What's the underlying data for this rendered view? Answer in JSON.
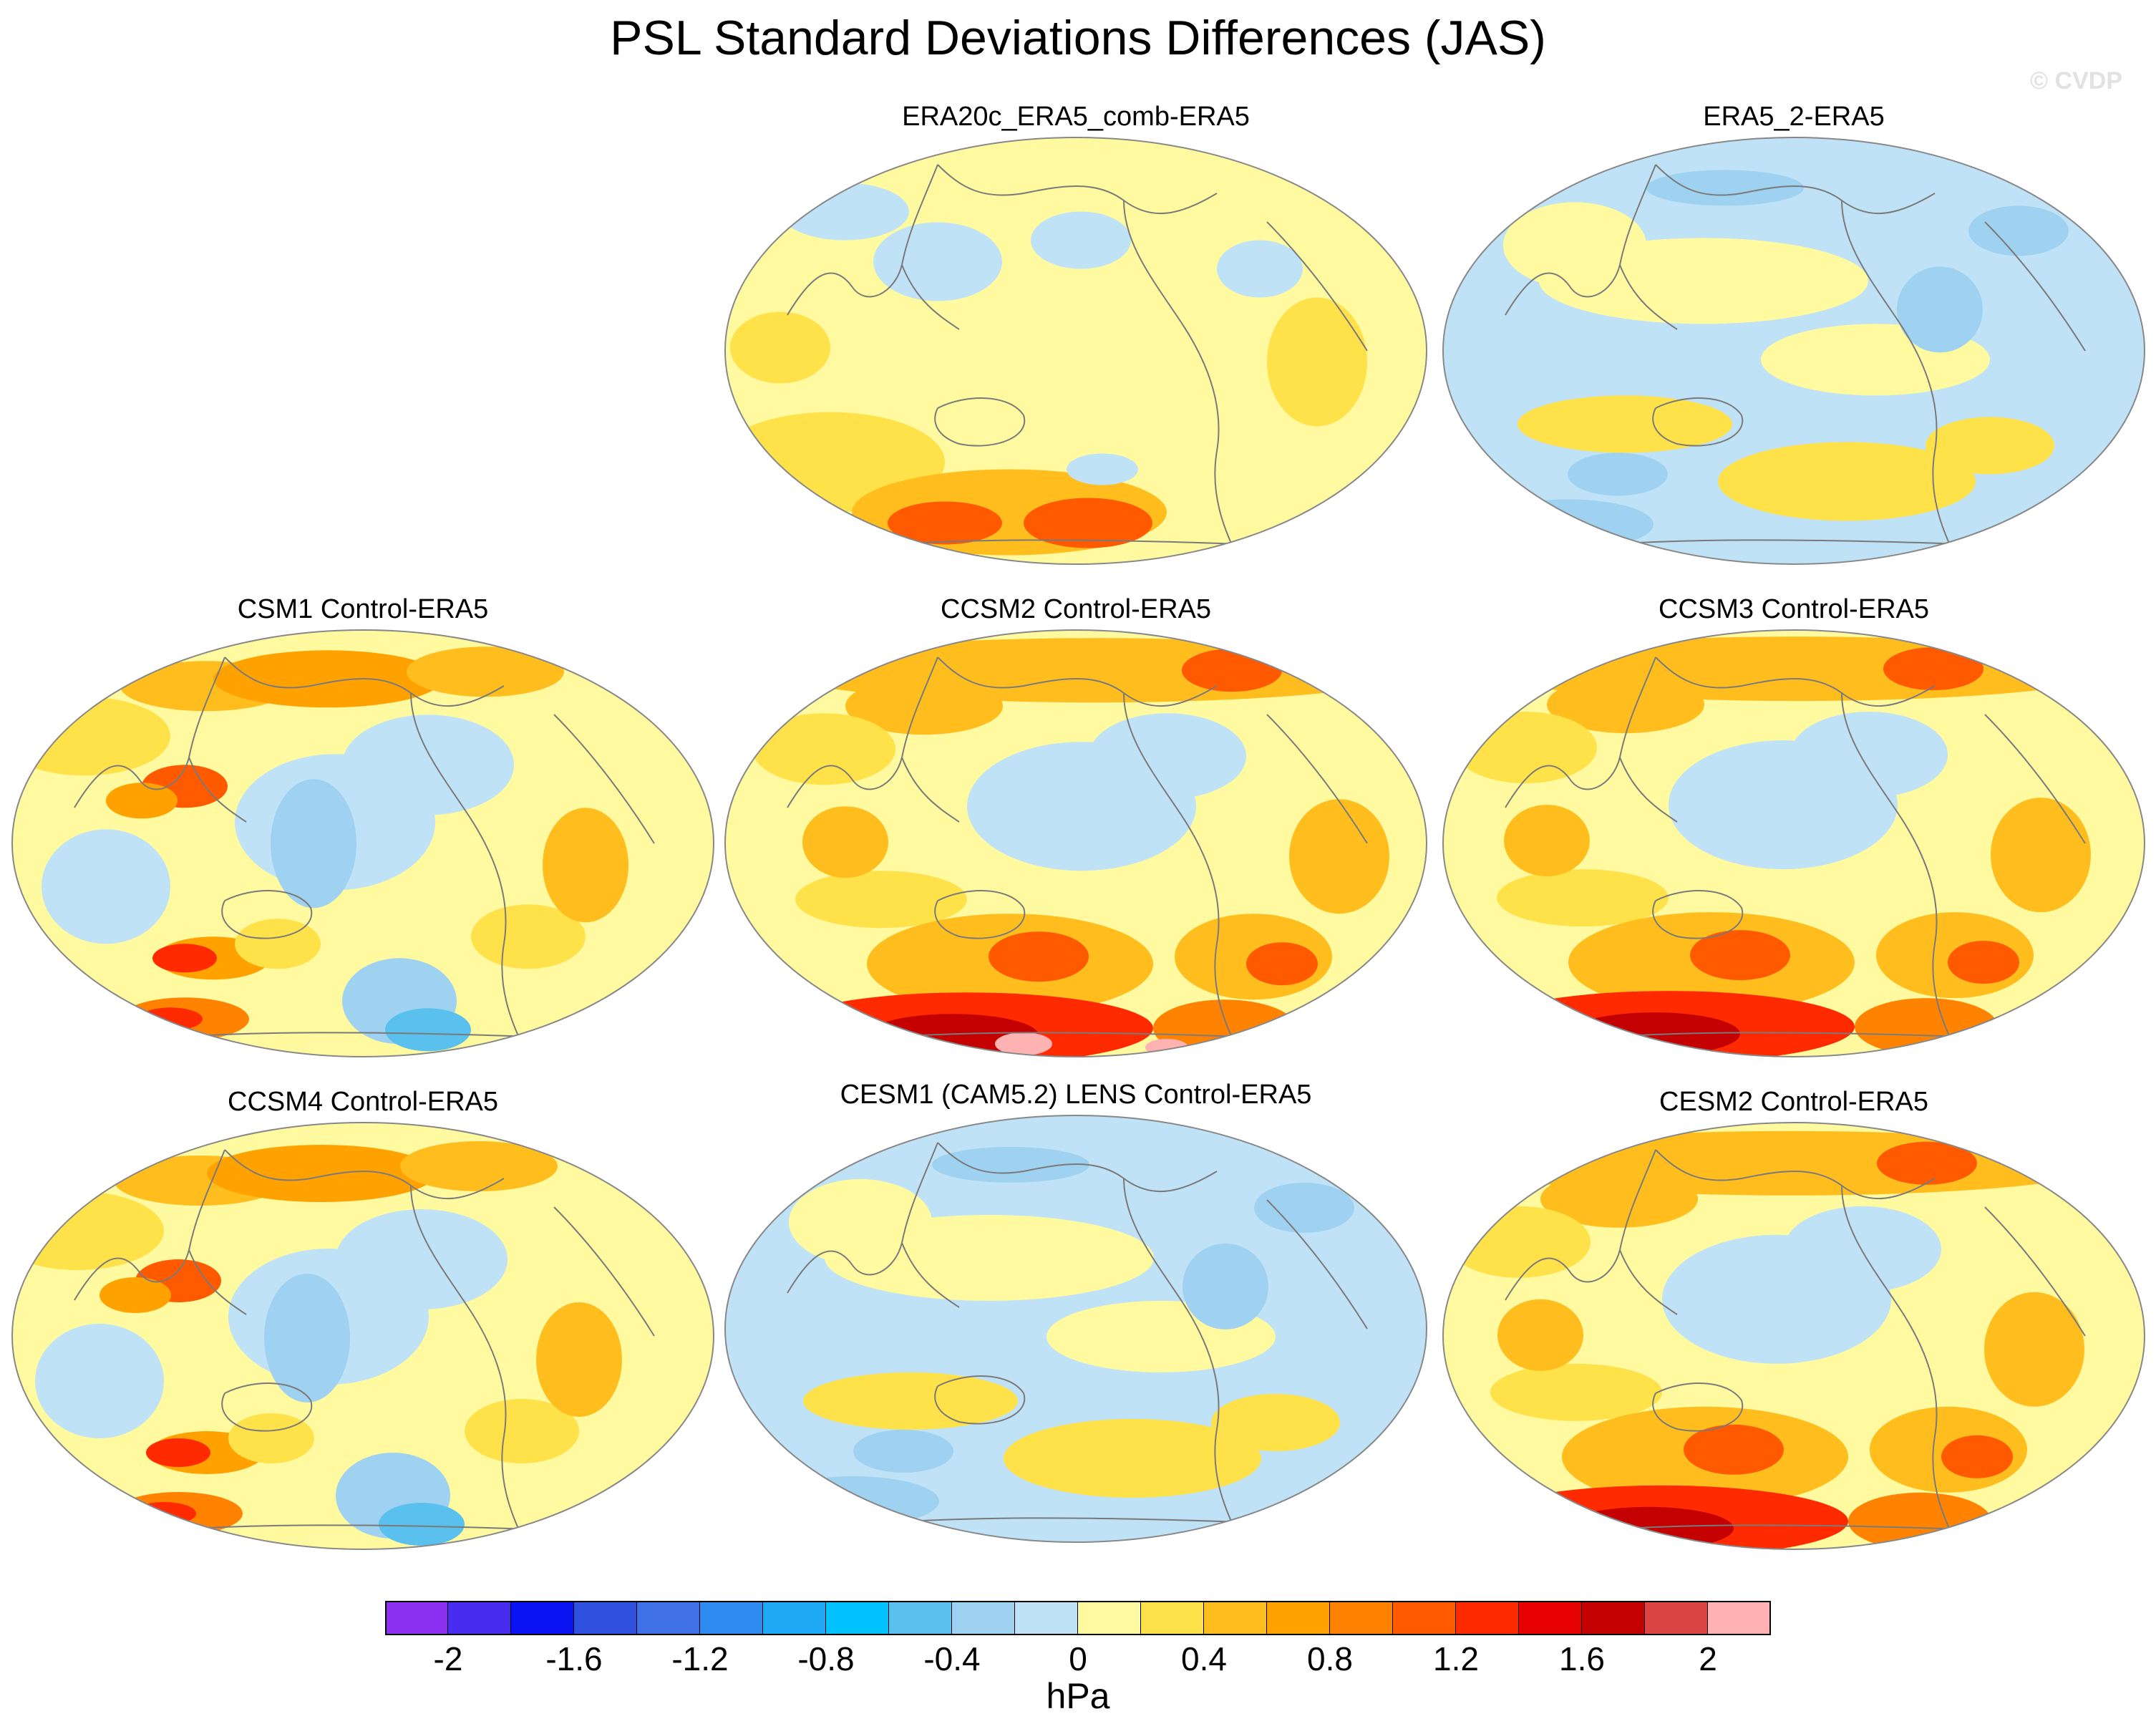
{
  "title": "PSL Standard Deviations Differences (JAS)",
  "credit": "© CVDP",
  "panels": [
    {
      "title": "ERA20c_ERA5_comb-ERA5",
      "theme": "yellow"
    },
    {
      "title": "ERA5_2-ERA5",
      "theme": "blue"
    },
    {
      "title": "CSM1 Control-ERA5",
      "theme": "mixed"
    },
    {
      "title": "CCSM2 Control-ERA5",
      "theme": "warm"
    },
    {
      "title": "CCSM3 Control-ERA5",
      "theme": "warm"
    },
    {
      "title": "CCSM4 Control-ERA5",
      "theme": "mixed"
    },
    {
      "title": "CESM1 (CAM5.2) LENS Control-ERA5",
      "theme": "blue"
    },
    {
      "title": "CESM2 Control-ERA5",
      "theme": "warm"
    }
  ],
  "colorbar": {
    "colors": [
      "#8b2ff0",
      "#4a2cf0",
      "#0a14f2",
      "#3050e0",
      "#4070e6",
      "#2e8cf0",
      "#1ea8f5",
      "#00c2ff",
      "#5ac0ee",
      "#9fd2f0",
      "#bfe2f6",
      "#fffaa0",
      "#ffe24a",
      "#ffbe1e",
      "#ffa200",
      "#ff8200",
      "#ff5a00",
      "#ff2a00",
      "#e60000",
      "#c40000",
      "#dd4444",
      "#ffb2b2"
    ],
    "tick_labels": [
      "-2",
      "-1.6",
      "-1.2",
      "-0.8",
      "-0.4",
      "0",
      "0.4",
      "0.8",
      "1.2",
      "1.6",
      "2"
    ],
    "units": "hPa"
  }
}
